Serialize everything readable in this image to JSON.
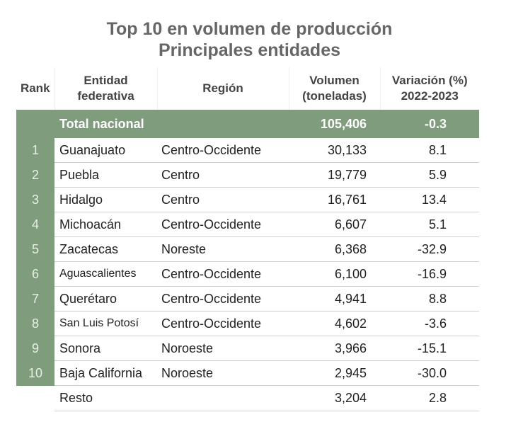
{
  "title": "Top 10 en volumen de producción",
  "subtitle": "Principales entidades",
  "headers": {
    "rank": "Rank",
    "entidad": "Entidad federativa",
    "region": "Región",
    "volumen": "Volumen (toneladas)",
    "variacion": "Variación (%) 2022-2023"
  },
  "total": {
    "label": "Total nacional",
    "volumen": "105,406",
    "variacion": "-0.3"
  },
  "rows": [
    {
      "rank": "1",
      "entidad": "Guanajuato",
      "region": "Centro-Occidente",
      "volumen": "30,133",
      "variacion": "8.1"
    },
    {
      "rank": "2",
      "entidad": "Puebla",
      "region": "Centro",
      "volumen": "19,779",
      "variacion": "5.9"
    },
    {
      "rank": "3",
      "entidad": "Hidalgo",
      "region": "Centro",
      "volumen": "16,761",
      "variacion": "13.4"
    },
    {
      "rank": "4",
      "entidad": "Michoacán",
      "region": "Centro-Occidente",
      "volumen": "6,607",
      "variacion": "5.1"
    },
    {
      "rank": "5",
      "entidad": "Zacatecas",
      "region": "Noreste",
      "volumen": "6,368",
      "variacion": "-32.9"
    },
    {
      "rank": "6",
      "entidad": "Aguascalientes",
      "region": "Centro-Occidente",
      "volumen": "6,100",
      "variacion": "-16.9"
    },
    {
      "rank": "7",
      "entidad": "Querétaro",
      "region": "Centro-Occidente",
      "volumen": "4,941",
      "variacion": "8.8"
    },
    {
      "rank": "8",
      "entidad": "San Luis Potosí",
      "region": "Centro-Occidente",
      "volumen": "4,602",
      "variacion": "-3.6"
    },
    {
      "rank": "9",
      "entidad": "Sonora",
      "region": "Noroeste",
      "volumen": "3,966",
      "variacion": "-15.1"
    },
    {
      "rank": "10",
      "entidad": "Baja California",
      "region": "Noroeste",
      "volumen": "2,945",
      "variacion": "-30.0"
    }
  ],
  "resto": {
    "label": "Resto",
    "volumen": "3,204",
    "variacion": "2.8"
  },
  "colors": {
    "accent": "#7f9c7c",
    "title": "#666666"
  }
}
